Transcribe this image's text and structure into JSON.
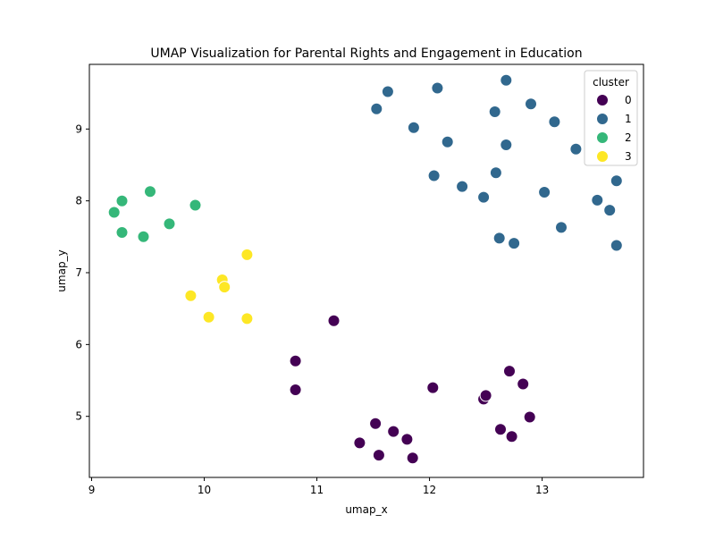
{
  "chart_data": {
    "type": "scatter",
    "title": "UMAP Visualization for Parental Rights and Engagement in Education",
    "xlabel": "umap_x",
    "ylabel": "umap_y",
    "xlim": [
      8.98,
      13.9
    ],
    "ylim": [
      4.15,
      9.9
    ],
    "xticks": [
      9,
      10,
      11,
      12,
      13
    ],
    "yticks": [
      5,
      6,
      7,
      8,
      9
    ],
    "grid": false,
    "legend": {
      "title": "cluster",
      "placement": "top-right",
      "entries": [
        {
          "label": "0",
          "color": "#440154"
        },
        {
          "label": "1",
          "color": "#31688e"
        },
        {
          "label": "2",
          "color": "#35b779"
        },
        {
          "label": "3",
          "color": "#fde725"
        }
      ]
    },
    "series": [
      {
        "name": "0",
        "color": "#440154",
        "points": [
          [
            11.15,
            6.33
          ],
          [
            10.81,
            5.77
          ],
          [
            10.81,
            5.37
          ],
          [
            12.03,
            5.4
          ],
          [
            12.71,
            5.63
          ],
          [
            12.83,
            5.45
          ],
          [
            12.48,
            5.24
          ],
          [
            12.5,
            5.29
          ],
          [
            12.63,
            4.82
          ],
          [
            12.73,
            4.72
          ],
          [
            12.89,
            4.99
          ],
          [
            11.52,
            4.9
          ],
          [
            11.38,
            4.63
          ],
          [
            11.55,
            4.46
          ],
          [
            11.68,
            4.79
          ],
          [
            11.8,
            4.68
          ],
          [
            11.85,
            4.42
          ]
        ]
      },
      {
        "name": "1",
        "color": "#31688e",
        "points": [
          [
            11.63,
            9.52
          ],
          [
            12.07,
            9.57
          ],
          [
            12.68,
            9.68
          ],
          [
            11.53,
            9.28
          ],
          [
            12.58,
            9.24
          ],
          [
            12.9,
            9.35
          ],
          [
            13.11,
            9.1
          ],
          [
            11.86,
            9.02
          ],
          [
            12.16,
            8.82
          ],
          [
            12.68,
            8.78
          ],
          [
            13.3,
            8.72
          ],
          [
            12.04,
            8.35
          ],
          [
            12.59,
            8.39
          ],
          [
            12.29,
            8.2
          ],
          [
            12.48,
            8.05
          ],
          [
            13.02,
            8.12
          ],
          [
            13.66,
            8.28
          ],
          [
            13.49,
            8.01
          ],
          [
            13.6,
            7.87
          ],
          [
            13.17,
            7.63
          ],
          [
            12.62,
            7.48
          ],
          [
            12.75,
            7.41
          ],
          [
            13.66,
            7.38
          ]
        ]
      },
      {
        "name": "2",
        "color": "#35b779",
        "points": [
          [
            9.52,
            8.13
          ],
          [
            9.27,
            8.0
          ],
          [
            9.2,
            7.84
          ],
          [
            9.92,
            7.94
          ],
          [
            9.69,
            7.68
          ],
          [
            9.27,
            7.56
          ],
          [
            9.46,
            7.5
          ]
        ]
      },
      {
        "name": "3",
        "color": "#fde725",
        "points": [
          [
            10.38,
            7.25
          ],
          [
            10.16,
            6.9
          ],
          [
            10.18,
            6.8
          ],
          [
            9.88,
            6.68
          ],
          [
            10.04,
            6.38
          ],
          [
            10.38,
            6.36
          ]
        ]
      }
    ]
  }
}
